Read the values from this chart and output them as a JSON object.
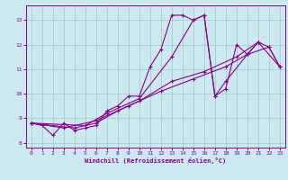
{
  "xlabel": "Windchill (Refroidissement éolien,°C)",
  "bg_color": "#cce8f0",
  "grid_color": "#99ccbb",
  "line_color": "#880088",
  "marker": "+",
  "xlim": [
    -0.5,
    23.5
  ],
  "ylim": [
    7.8,
    13.6
  ],
  "xticks": [
    0,
    1,
    2,
    3,
    4,
    5,
    6,
    7,
    8,
    9,
    10,
    11,
    12,
    13,
    14,
    15,
    16,
    17,
    18,
    19,
    20,
    21,
    22,
    23
  ],
  "yticks": [
    8,
    9,
    10,
    11,
    12,
    13
  ],
  "series1": [
    [
      0,
      8.8
    ],
    [
      1,
      8.7
    ],
    [
      2,
      8.3
    ],
    [
      3,
      8.8
    ],
    [
      4,
      8.5
    ],
    [
      5,
      8.6
    ],
    [
      6,
      8.7
    ],
    [
      7,
      9.3
    ],
    [
      8,
      9.5
    ],
    [
      9,
      9.9
    ],
    [
      10,
      9.9
    ],
    [
      11,
      11.1
    ],
    [
      12,
      11.8
    ],
    [
      13,
      13.2
    ],
    [
      14,
      13.2
    ],
    [
      15,
      13.0
    ],
    [
      16,
      13.2
    ],
    [
      17,
      9.9
    ],
    [
      18,
      10.2
    ],
    [
      19,
      12.0
    ],
    [
      20,
      11.6
    ],
    [
      21,
      12.1
    ],
    [
      22,
      11.9
    ],
    [
      23,
      11.1
    ]
  ],
  "series2": [
    [
      0,
      8.8
    ],
    [
      4,
      8.6
    ],
    [
      6,
      8.8
    ],
    [
      8,
      9.3
    ],
    [
      10,
      9.7
    ],
    [
      13,
      10.5
    ],
    [
      16,
      10.9
    ],
    [
      19,
      11.5
    ],
    [
      21,
      12.1
    ],
    [
      23,
      11.1
    ]
  ],
  "series3": [
    [
      0,
      8.8
    ],
    [
      3,
      8.6
    ],
    [
      6,
      8.9
    ],
    [
      9,
      9.5
    ],
    [
      12,
      10.1
    ],
    [
      15,
      10.6
    ],
    [
      18,
      11.1
    ],
    [
      20,
      11.6
    ],
    [
      22,
      11.9
    ],
    [
      23,
      11.1
    ]
  ],
  "series4": [
    [
      0,
      8.8
    ],
    [
      5,
      8.7
    ],
    [
      7,
      9.2
    ],
    [
      10,
      9.8
    ],
    [
      13,
      11.5
    ],
    [
      15,
      13.0
    ],
    [
      16,
      13.2
    ],
    [
      17,
      9.9
    ],
    [
      18,
      10.5
    ],
    [
      20,
      11.6
    ],
    [
      21,
      12.1
    ]
  ]
}
